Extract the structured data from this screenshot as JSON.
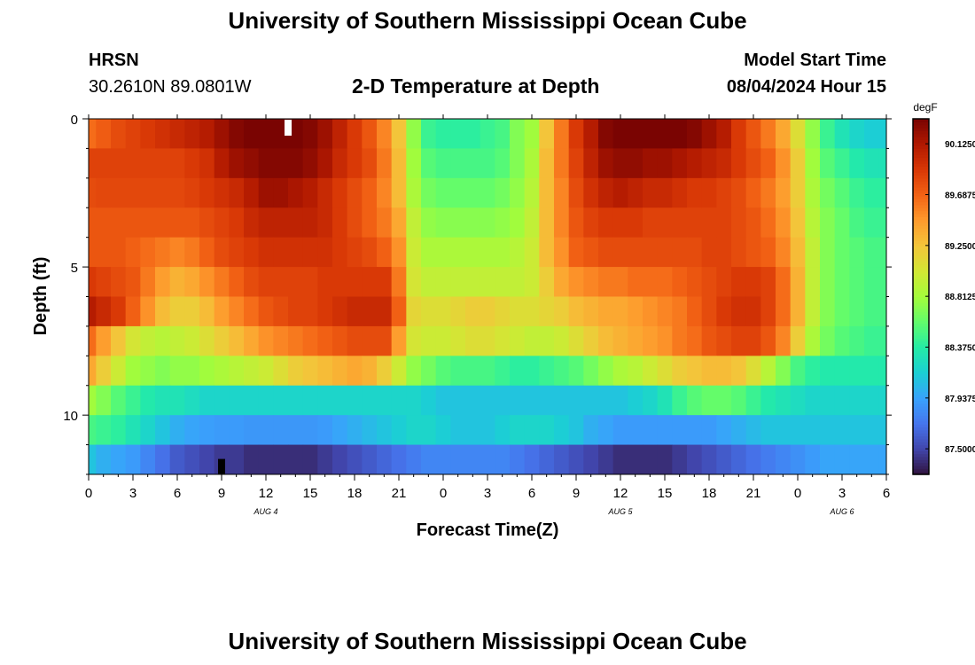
{
  "page": {
    "title": "University of Southern Mississippi Ocean Cube",
    "bottom_title": "University of Southern Mississippi Ocean Cube",
    "station": "HRSN",
    "coords": "30.2610N  89.0801W",
    "plot_title": "2-D Temperature at Depth",
    "model_label": "Model Start Time",
    "model_time": "08/04/2024 Hour 15"
  },
  "chart_data": {
    "type": "heatmap",
    "title": "2-D Temperature at Depth",
    "xlabel": "Forecast Time(Z)",
    "ylabel": "Depth (ft)",
    "x_hours": [
      0,
      54
    ],
    "x_tick_labels": [
      "0",
      "3",
      "6",
      "9",
      "12",
      "15",
      "18",
      "21",
      "0",
      "3",
      "6",
      "9",
      "12",
      "15",
      "18",
      "21",
      "0",
      "3",
      "6"
    ],
    "date_labels": [
      {
        "hour": 12,
        "text": "AUG 4"
      },
      {
        "hour": 36,
        "text": "AUG 5"
      },
      {
        "hour": 51,
        "text": "AUG 6"
      }
    ],
    "y_range_ft": [
      0,
      12
    ],
    "y_tick_labels": [
      "0",
      "5",
      "10"
    ],
    "y_tick_values": [
      0,
      5,
      10
    ],
    "depth_levels_ft": [
      0.5,
      1.5,
      2.5,
      3.5,
      4.5,
      5.5,
      6.5,
      7.5,
      8.5,
      9.5,
      10.5,
      11.5
    ],
    "profile_hours": [
      0,
      1,
      2,
      3,
      4,
      5,
      6,
      7,
      8,
      9,
      10,
      11,
      12,
      13,
      14,
      15,
      16,
      17,
      18,
      19,
      20,
      21,
      22,
      23,
      24,
      25,
      26,
      27,
      28,
      29,
      30,
      31,
      32,
      33,
      34,
      35,
      36,
      37,
      38,
      39,
      40,
      41,
      42,
      43,
      44,
      45,
      46,
      47,
      48,
      49,
      50,
      51,
      52,
      53,
      54
    ],
    "profiles_degF": [
      [
        89.65,
        89.72,
        89.8,
        89.85,
        89.9,
        89.95,
        90.0,
        90.05,
        90.1,
        90.2,
        90.3,
        90.4,
        90.4,
        90.4,
        90.4,
        90.3,
        90.2,
        90.05,
        89.9,
        89.75,
        89.55,
        89.25,
        88.75,
        88.45,
        88.4,
        88.4,
        88.4,
        88.45,
        88.5,
        88.7,
        88.8,
        89.25,
        89.6,
        89.9,
        90.1,
        90.3,
        90.4,
        90.4,
        90.4,
        90.4,
        90.4,
        90.3,
        90.2,
        90.1,
        89.9,
        89.75,
        89.6,
        89.4,
        89.1,
        88.75,
        88.45,
        88.3,
        88.2,
        88.15,
        88.15
      ],
      [
        89.85,
        89.85,
        89.85,
        89.85,
        89.85,
        89.85,
        89.85,
        89.9,
        89.95,
        90.1,
        90.2,
        90.25,
        90.3,
        90.3,
        90.3,
        90.25,
        90.15,
        90.0,
        89.9,
        89.8,
        89.6,
        89.3,
        88.8,
        88.55,
        88.5,
        88.5,
        88.5,
        88.5,
        88.55,
        88.7,
        88.85,
        89.3,
        89.6,
        89.85,
        90.05,
        90.2,
        90.25,
        90.25,
        90.2,
        90.2,
        90.15,
        90.1,
        90.05,
        90.0,
        89.9,
        89.8,
        89.7,
        89.5,
        89.2,
        88.8,
        88.55,
        88.45,
        88.35,
        88.3,
        88.3
      ],
      [
        89.8,
        89.82,
        89.82,
        89.82,
        89.82,
        89.82,
        89.82,
        89.85,
        89.9,
        89.95,
        90.0,
        90.1,
        90.2,
        90.2,
        90.15,
        90.1,
        90.0,
        89.9,
        89.8,
        89.7,
        89.55,
        89.3,
        88.85,
        88.65,
        88.6,
        88.6,
        88.6,
        88.6,
        88.65,
        88.75,
        88.9,
        89.3,
        89.55,
        89.8,
        89.95,
        90.05,
        90.1,
        90.05,
        90.0,
        90.0,
        89.95,
        89.9,
        89.9,
        89.85,
        89.8,
        89.7,
        89.6,
        89.45,
        89.2,
        88.85,
        88.65,
        88.55,
        88.45,
        88.4,
        88.4
      ],
      [
        89.75,
        89.75,
        89.75,
        89.75,
        89.75,
        89.75,
        89.75,
        89.75,
        89.8,
        89.85,
        89.9,
        90.0,
        90.05,
        90.05,
        90.05,
        90.05,
        90.0,
        89.9,
        89.8,
        89.7,
        89.6,
        89.4,
        88.95,
        88.75,
        88.72,
        88.72,
        88.72,
        88.72,
        88.75,
        88.8,
        88.95,
        89.3,
        89.55,
        89.75,
        89.85,
        89.9,
        89.9,
        89.9,
        89.85,
        89.85,
        89.85,
        89.85,
        89.85,
        89.85,
        89.8,
        89.75,
        89.65,
        89.5,
        89.25,
        88.9,
        88.7,
        88.6,
        88.5,
        88.45,
        88.45
      ],
      [
        89.75,
        89.75,
        89.75,
        89.7,
        89.65,
        89.6,
        89.55,
        89.6,
        89.7,
        89.8,
        89.85,
        89.9,
        89.95,
        89.95,
        89.95,
        89.95,
        89.95,
        89.9,
        89.85,
        89.8,
        89.7,
        89.5,
        89.0,
        88.85,
        88.85,
        88.85,
        88.85,
        88.85,
        88.85,
        88.9,
        89.0,
        89.3,
        89.5,
        89.7,
        89.75,
        89.8,
        89.8,
        89.8,
        89.8,
        89.8,
        89.8,
        89.8,
        89.85,
        89.85,
        89.8,
        89.75,
        89.7,
        89.55,
        89.3,
        88.95,
        88.7,
        88.6,
        88.55,
        88.5,
        88.5
      ],
      [
        89.9,
        89.85,
        89.8,
        89.75,
        89.6,
        89.45,
        89.35,
        89.4,
        89.5,
        89.6,
        89.7,
        89.8,
        89.85,
        89.85,
        89.85,
        89.85,
        89.9,
        89.9,
        89.9,
        89.9,
        89.9,
        89.6,
        89.05,
        88.95,
        88.95,
        88.95,
        88.95,
        88.95,
        88.95,
        88.95,
        89.0,
        89.2,
        89.4,
        89.5,
        89.55,
        89.6,
        89.6,
        89.65,
        89.65,
        89.65,
        89.7,
        89.75,
        89.8,
        89.85,
        89.9,
        89.9,
        89.85,
        89.65,
        89.35,
        88.95,
        88.7,
        88.6,
        88.55,
        88.5,
        88.5
      ],
      [
        90.1,
        90.0,
        89.9,
        89.7,
        89.5,
        89.3,
        89.2,
        89.2,
        89.3,
        89.45,
        89.55,
        89.65,
        89.75,
        89.8,
        89.85,
        89.85,
        89.9,
        89.95,
        90.0,
        90.0,
        90.0,
        89.7,
        89.15,
        89.1,
        89.1,
        89.15,
        89.2,
        89.2,
        89.15,
        89.1,
        89.1,
        89.15,
        89.2,
        89.3,
        89.35,
        89.4,
        89.4,
        89.45,
        89.5,
        89.55,
        89.6,
        89.7,
        89.8,
        89.9,
        89.95,
        89.95,
        89.85,
        89.65,
        89.35,
        88.95,
        88.7,
        88.6,
        88.55,
        88.5,
        88.5
      ],
      [
        89.65,
        89.45,
        89.25,
        89.05,
        88.95,
        88.9,
        88.95,
        89.0,
        89.1,
        89.2,
        89.3,
        89.4,
        89.5,
        89.55,
        89.6,
        89.65,
        89.7,
        89.75,
        89.8,
        89.8,
        89.8,
        89.45,
        89.05,
        89.0,
        89.0,
        89.05,
        89.1,
        89.1,
        89.05,
        89.0,
        88.95,
        88.95,
        89.0,
        89.1,
        89.2,
        89.3,
        89.35,
        89.4,
        89.45,
        89.5,
        89.6,
        89.65,
        89.75,
        89.8,
        89.85,
        89.85,
        89.75,
        89.55,
        89.2,
        88.85,
        88.65,
        88.55,
        88.5,
        88.45,
        88.45
      ],
      [
        89.4,
        89.2,
        89.0,
        88.8,
        88.75,
        88.7,
        88.75,
        88.75,
        88.8,
        88.85,
        88.9,
        88.95,
        89.0,
        89.1,
        89.2,
        89.25,
        89.3,
        89.35,
        89.4,
        89.35,
        89.2,
        89.0,
        88.75,
        88.65,
        88.55,
        88.5,
        88.5,
        88.5,
        88.45,
        88.4,
        88.4,
        88.45,
        88.5,
        88.55,
        88.65,
        88.75,
        88.85,
        88.9,
        89.0,
        89.1,
        89.2,
        89.25,
        89.3,
        89.3,
        89.25,
        89.1,
        88.9,
        88.7,
        88.5,
        88.4,
        88.35,
        88.35,
        88.35,
        88.35,
        88.35
      ],
      [
        88.8,
        88.7,
        88.55,
        88.45,
        88.35,
        88.3,
        88.3,
        88.25,
        88.2,
        88.2,
        88.2,
        88.2,
        88.2,
        88.2,
        88.2,
        88.2,
        88.2,
        88.2,
        88.2,
        88.2,
        88.2,
        88.2,
        88.2,
        88.15,
        88.1,
        88.1,
        88.1,
        88.1,
        88.1,
        88.1,
        88.1,
        88.1,
        88.1,
        88.1,
        88.1,
        88.1,
        88.1,
        88.15,
        88.2,
        88.3,
        88.45,
        88.55,
        88.6,
        88.6,
        88.55,
        88.45,
        88.35,
        88.3,
        88.25,
        88.2,
        88.2,
        88.2,
        88.2,
        88.2,
        88.2
      ],
      [
        88.5,
        88.45,
        88.4,
        88.3,
        88.2,
        88.1,
        88.0,
        87.95,
        87.92,
        87.9,
        87.9,
        87.88,
        87.88,
        87.88,
        87.88,
        87.88,
        87.9,
        87.95,
        88.0,
        88.05,
        88.1,
        88.15,
        88.2,
        88.2,
        88.15,
        88.1,
        88.1,
        88.1,
        88.15,
        88.2,
        88.2,
        88.2,
        88.15,
        88.1,
        88.0,
        87.95,
        87.9,
        87.9,
        87.9,
        87.9,
        87.9,
        87.9,
        87.9,
        87.95,
        88.0,
        88.05,
        88.1,
        88.1,
        88.1,
        88.1,
        88.1,
        88.1,
        88.1,
        88.1,
        88.1
      ],
      [
        88.1,
        88.0,
        87.95,
        87.9,
        87.8,
        87.7,
        87.6,
        87.55,
        87.5,
        87.45,
        87.45,
        87.4,
        87.4,
        87.4,
        87.4,
        87.4,
        87.45,
        87.5,
        87.55,
        87.6,
        87.65,
        87.7,
        87.75,
        87.8,
        87.8,
        87.8,
        87.8,
        87.8,
        87.8,
        87.75,
        87.7,
        87.65,
        87.6,
        87.55,
        87.5,
        87.45,
        87.4,
        87.4,
        87.4,
        87.4,
        87.45,
        87.5,
        87.55,
        87.6,
        87.65,
        87.7,
        87.75,
        87.8,
        87.85,
        87.9,
        87.95,
        87.95,
        87.95,
        87.95,
        87.95
      ]
    ],
    "vmin": 87.28,
    "vmax": 90.34,
    "colorbar_label": "degF",
    "colorbar_ticks": [
      "87.50000",
      "87.93750",
      "88.37500",
      "88.81250",
      "89.25000",
      "89.68750",
      "90.12500"
    ],
    "colorbar_tick_values": [
      87.5,
      87.9375,
      88.375,
      88.8125,
      89.25,
      89.6875,
      90.125
    ],
    "colormap": [
      "#30123b",
      "#4145ab",
      "#4675ed",
      "#39a2fc",
      "#1bcfd4",
      "#24eca6",
      "#61fc6c",
      "#a4fc3b",
      "#d1e834",
      "#f3c63a",
      "#fe9b2d",
      "#f36315",
      "#d93806",
      "#b11901",
      "#7a0402"
    ],
    "markers": [
      {
        "hour": 13.5,
        "depth_ft": 0.3,
        "color": "#ffffff"
      },
      {
        "hour": 9.0,
        "depth_ft": 11.75,
        "color": "#000000"
      }
    ],
    "legend_placement": "right"
  }
}
